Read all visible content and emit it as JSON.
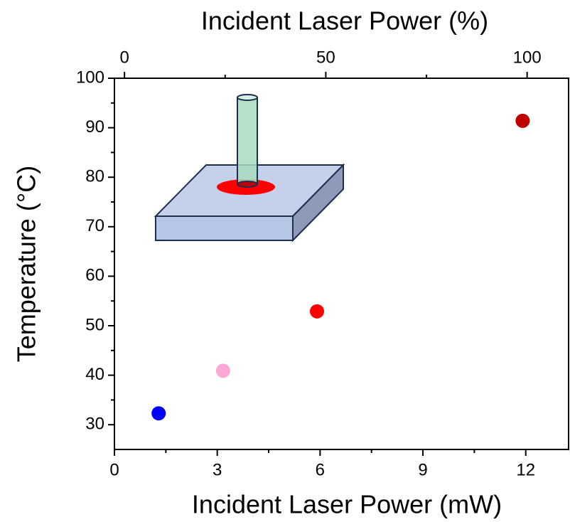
{
  "chart_data": {
    "type": "scatter",
    "x_label": "Incident Laser Power (mW)",
    "x2_label": "Incident Laser Power (%)",
    "y_label": "Temperature (°C)",
    "x": [
      1.29,
      3.17,
      5.91,
      11.91
    ],
    "values": [
      32.3,
      40.9,
      52.9,
      91.4
    ],
    "colors": [
      "#0000ff",
      "#ffa6d9",
      "#ff0000",
      "#c00000"
    ],
    "xlim": [
      0,
      13.25
    ],
    "xticks": [
      0,
      3,
      6,
      9,
      12
    ],
    "xminorticks": [
      1.5,
      4.5,
      7.5,
      10.5
    ],
    "x2lim": [
      -2.5,
      110.3
    ],
    "x2ticks": [
      0,
      50,
      100
    ],
    "x2minorticks": [
      25,
      75
    ],
    "ylim": [
      25,
      100
    ],
    "yticks": [
      30,
      40,
      50,
      60,
      70,
      80,
      90,
      100
    ],
    "yminorticks": [
      35,
      45,
      55,
      65,
      75,
      85,
      95
    ]
  }
}
